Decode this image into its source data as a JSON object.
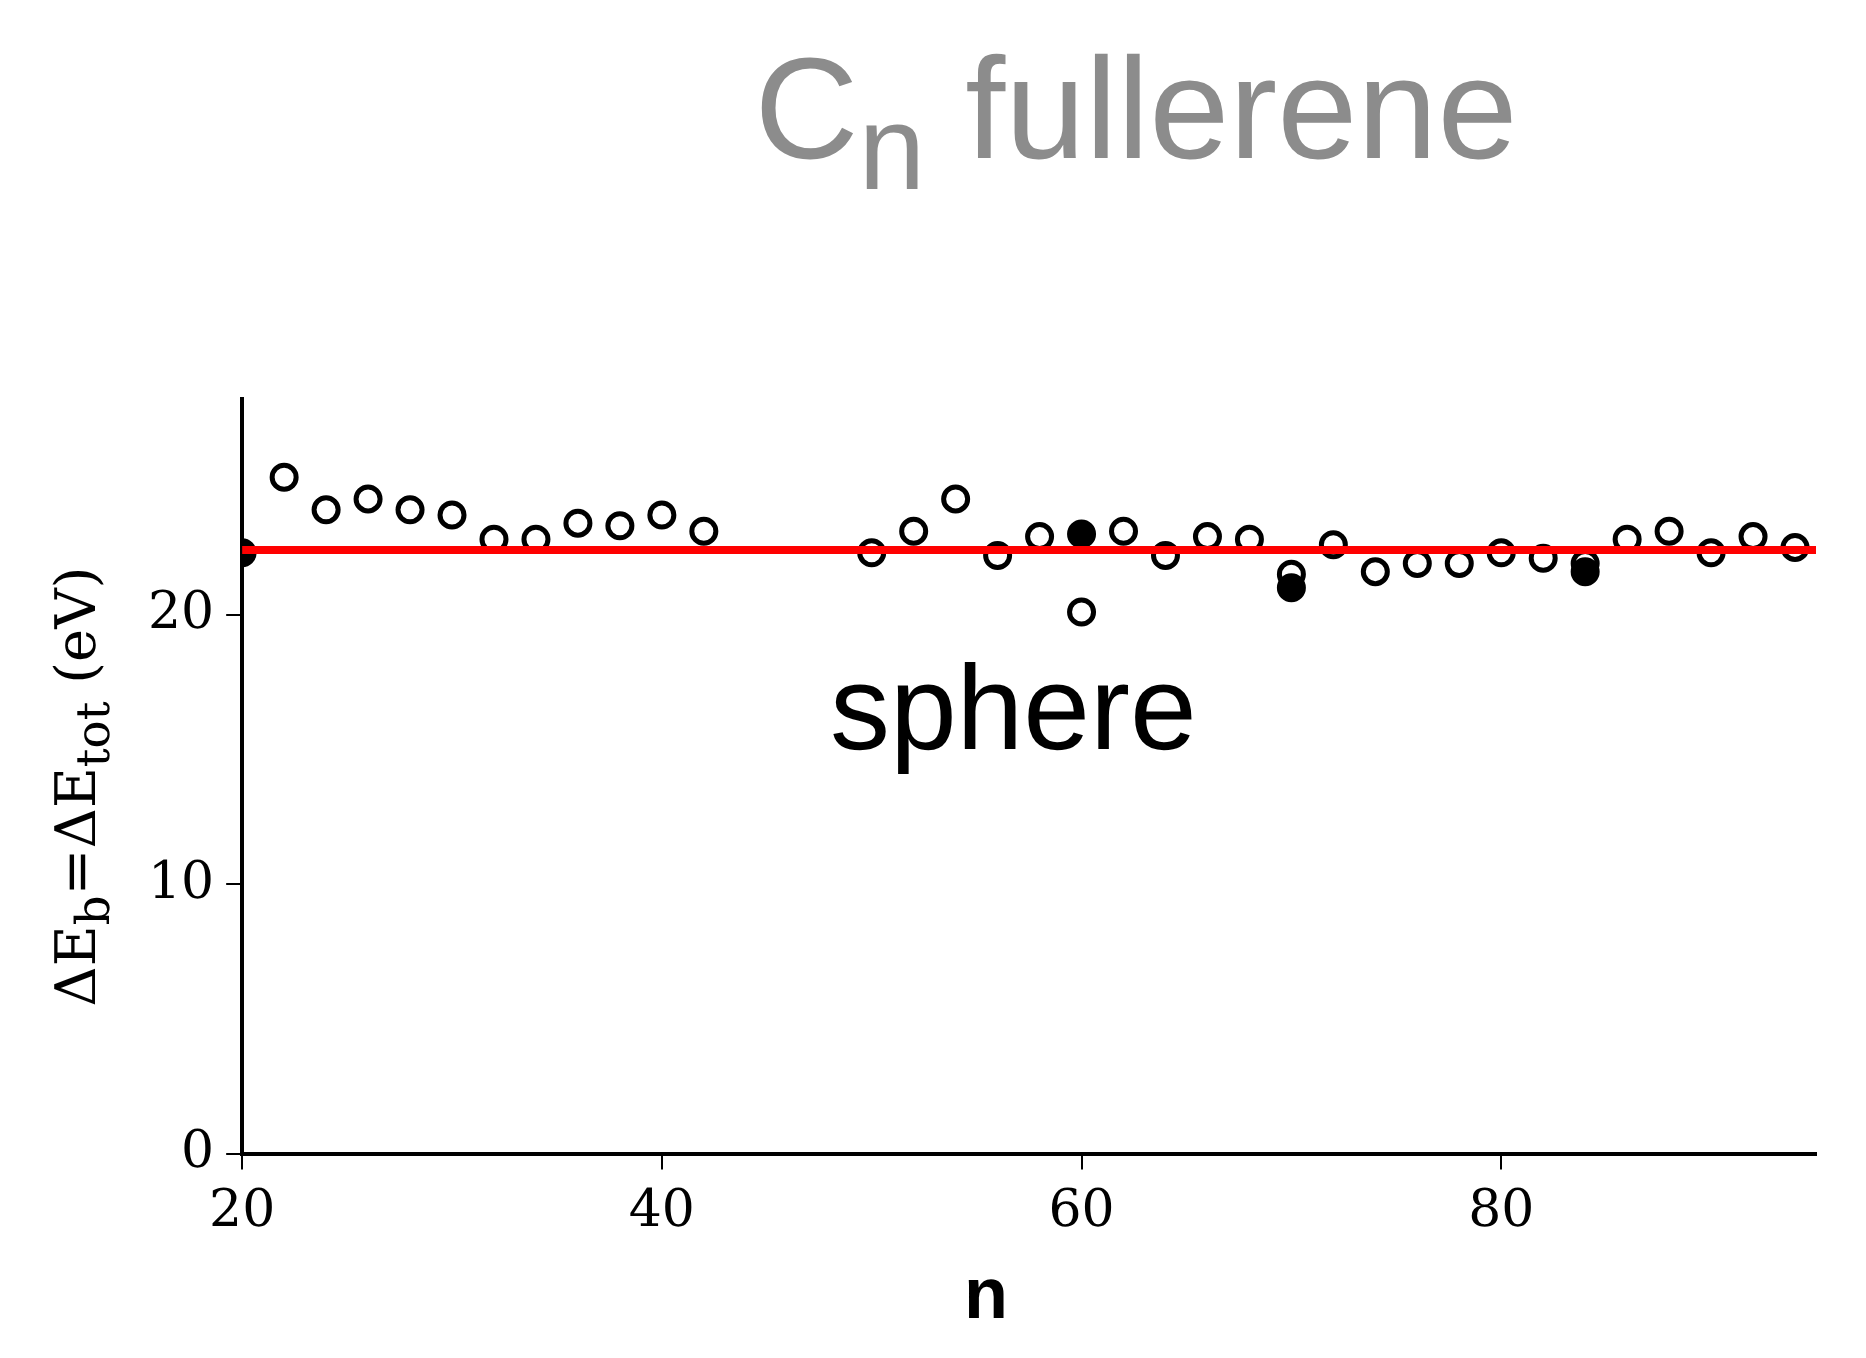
{
  "chart_data": {
    "type": "scatter",
    "title": "C$_{n}$ fullerene",
    "xlabel": "n",
    "ylabel": "ΔE$_{b}$=ΔE$_{tot}$ (eV)",
    "xlim": [
      20,
      95
    ],
    "ylim": [
      0,
      28
    ],
    "xticks": [
      20,
      40,
      60,
      80
    ],
    "yticks": [
      0,
      10,
      20
    ],
    "grid": false,
    "legend": false,
    "marker": "circle",
    "series": [
      {
        "color": "#000000",
        "x": [
          22,
          24,
          26,
          28,
          30,
          32,
          34,
          36,
          38,
          40,
          42,
          50,
          52,
          54,
          56,
          58,
          60,
          62,
          64,
          66,
          68,
          70,
          72,
          74,
          76,
          78,
          80,
          82,
          84,
          86,
          88,
          90,
          92,
          94
        ],
        "values": [
          25.1,
          23.9,
          24.3,
          23.9,
          23.7,
          22.8,
          22.8,
          23.4,
          23.3,
          23.7,
          23.1,
          22.3,
          23.1,
          24.3,
          22.2,
          22.9,
          20.1,
          23.1,
          22.2,
          22.9,
          22.8,
          21.5,
          22.6,
          21.6,
          21.9,
          21.9,
          22.3,
          22.1,
          21.9,
          22.8,
          23.1,
          22.3,
          22.9,
          22.5
        ]
      },
      {
        "color": "#000000",
        "x": [
          20,
          60,
          70,
          84
        ],
        "values": [
          22.3,
          23.0,
          21.0,
          21.6
        ]
      }
    ],
    "ref_lines": [
      {
        "axis": "y",
        "value": 22.4,
        "color": "#ff0000"
      }
    ],
    "annotations": [
      "sphere"
    ]
  }
}
